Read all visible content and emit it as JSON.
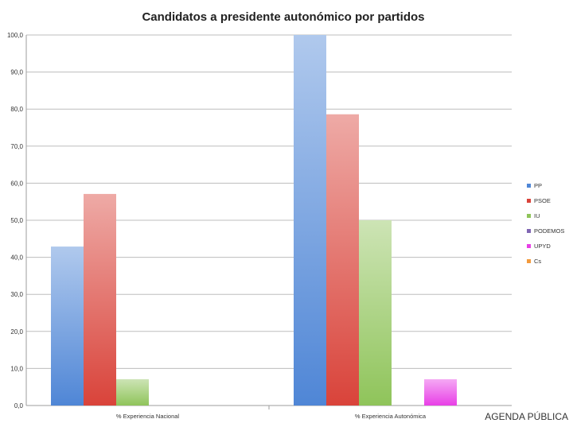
{
  "chart_data": {
    "type": "bar",
    "title": "Candidatos a presidente autonómico por partidos",
    "categories": [
      "% Experiencia Nacional",
      "% Experiencia Autonómica"
    ],
    "series": [
      {
        "name": "PP",
        "values": [
          42.9,
          100.0
        ],
        "color": "#4f86d6"
      },
      {
        "name": "PSOE",
        "values": [
          57.1,
          78.6
        ],
        "color": "#d9433a"
      },
      {
        "name": "IU",
        "values": [
          7.1,
          50.0
        ],
        "color": "#8fc45a"
      },
      {
        "name": "PODEMOS",
        "values": [
          0,
          0
        ],
        "color": "#8066b3"
      },
      {
        "name": "UPYD",
        "values": [
          0,
          7.1
        ],
        "color": "#e83fe6"
      },
      {
        "name": "Cs",
        "values": [
          0,
          0
        ],
        "color": "#f29a3d"
      }
    ],
    "ylim": [
      0,
      100
    ],
    "yticks": [
      "0,0",
      "10,0",
      "20,0",
      "30,0",
      "40,0",
      "50,0",
      "60,0",
      "70,0",
      "80,0",
      "90,0",
      "100,0"
    ],
    "grid": true,
    "legend": "right"
  },
  "watermark": "AGENDA PÚBLICA"
}
